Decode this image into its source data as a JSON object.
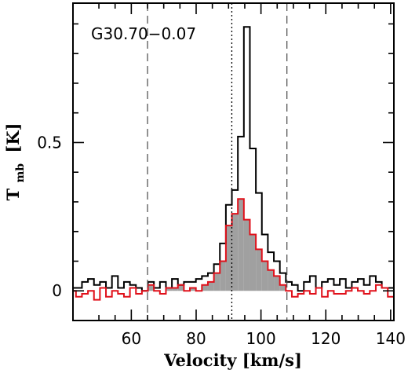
{
  "chart_data": {
    "type": "line",
    "source_label": "G30.70−0.07",
    "xlabel": "Velocity [km/s]",
    "ylabel_main": "T",
    "ylabel_sub": "mb",
    "ylabel_unit": "[K]",
    "xlim": [
      42,
      141
    ],
    "ylim": [
      -0.1,
      0.97
    ],
    "xticks_major": [
      60,
      80,
      100,
      120,
      140
    ],
    "xtick_labels": [
      "60",
      "80",
      "100",
      "120",
      "140"
    ],
    "yticks_major": [
      0,
      0.5
    ],
    "ytick_labels": [
      "0",
      "0.5"
    ],
    "vlines_dashed": [
      65,
      108
    ],
    "vline_dotted": 91,
    "colors": {
      "black_spectrum": "#000000",
      "red_spectrum": "#e0101a",
      "fill": "#a0a0a0"
    },
    "channel_width": 1.85,
    "series": [
      {
        "color": "black",
        "x": [
          42.0,
          43.85,
          45.7,
          47.55,
          49.4,
          51.25,
          53.1,
          54.95,
          56.8,
          58.65,
          60.5,
          62.35,
          64.2,
          66.05,
          67.9,
          69.75,
          71.6,
          73.45,
          75.3,
          77.15,
          79.0,
          80.85,
          82.7,
          84.55,
          86.4,
          88.25,
          90.1,
          91.95,
          93.8,
          95.65,
          97.5,
          99.35,
          101.2,
          103.05,
          104.9,
          106.75,
          108.6,
          110.45,
          112.3,
          114.15,
          116.0,
          117.85,
          119.7,
          121.55,
          123.4,
          125.25,
          127.1,
          128.95,
          130.8,
          132.65,
          134.5,
          136.35,
          138.2,
          140.05
        ],
        "y": [
          0.01,
          0.01,
          0.03,
          0.04,
          0.02,
          0.03,
          0.01,
          0.05,
          0.01,
          0.03,
          0.02,
          0.01,
          0.0,
          0.03,
          0.01,
          0.03,
          0.01,
          0.04,
          0.02,
          0.03,
          0.03,
          0.04,
          0.05,
          0.06,
          0.09,
          0.16,
          0.29,
          0.34,
          0.52,
          0.89,
          0.48,
          0.33,
          0.19,
          0.13,
          0.1,
          0.06,
          0.03,
          0.02,
          0.0,
          0.03,
          0.05,
          0.01,
          0.03,
          0.04,
          0.02,
          0.04,
          0.01,
          0.03,
          0.04,
          0.02,
          0.05,
          0.03,
          0.01,
          0.01
        ]
      },
      {
        "color": "red",
        "x": [
          42.0,
          43.85,
          45.7,
          47.55,
          49.4,
          51.25,
          53.1,
          54.95,
          56.8,
          58.65,
          60.5,
          62.35,
          64.2,
          66.05,
          67.9,
          69.75,
          71.6,
          73.45,
          75.3,
          77.15,
          79.0,
          80.85,
          82.7,
          84.55,
          86.4,
          88.25,
          90.1,
          91.95,
          93.8,
          95.65,
          97.5,
          99.35,
          101.2,
          103.05,
          104.9,
          106.75,
          108.6,
          110.45,
          112.3,
          114.15,
          116.0,
          117.85,
          119.7,
          121.55,
          123.4,
          125.25,
          127.1,
          128.95,
          130.8,
          132.65,
          134.5,
          136.35,
          138.2,
          140.05
        ],
        "y": [
          0.0,
          -0.02,
          -0.01,
          0.0,
          -0.03,
          0.01,
          -0.02,
          0.0,
          -0.01,
          -0.02,
          0.01,
          -0.01,
          0.0,
          0.02,
          0.0,
          -0.01,
          0.01,
          0.01,
          0.02,
          0.0,
          0.01,
          0.0,
          0.02,
          0.03,
          0.06,
          0.1,
          0.22,
          0.26,
          0.31,
          0.24,
          0.19,
          0.14,
          0.1,
          0.07,
          0.05,
          0.02,
          0.0,
          -0.02,
          -0.01,
          0.0,
          -0.01,
          0.01,
          -0.02,
          0.0,
          -0.01,
          -0.01,
          0.0,
          0.01,
          0.0,
          -0.01,
          0.0,
          0.02,
          0.01,
          -0.02
        ]
      }
    ],
    "fill_range": [
      65,
      108
    ]
  }
}
